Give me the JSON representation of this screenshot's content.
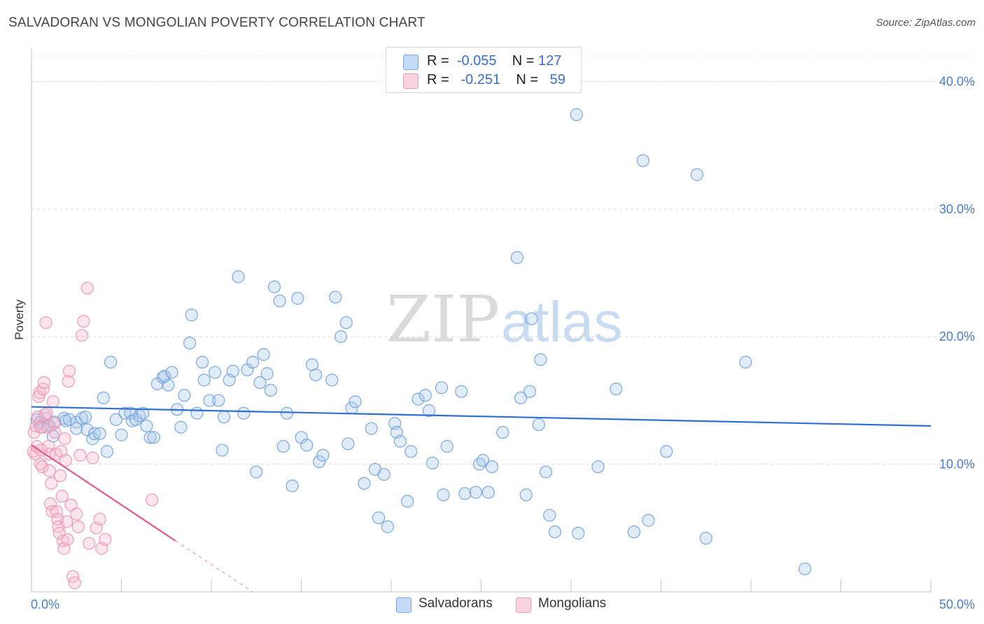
{
  "header": {
    "title": "SALVADORAN VS MONGOLIAN POVERTY CORRELATION CHART",
    "source": "Source: ZipAtlas.com"
  },
  "watermark": {
    "zip": "ZIP",
    "atlas": "atlas"
  },
  "legend": {
    "rows": [
      {
        "r_label": "R =",
        "r_value": "-0.055",
        "n_label": "N =",
        "n_value": "127",
        "color": "#a9c8ef"
      },
      {
        "r_label": "R =",
        "r_value": "-0.251",
        "n_label": "N =",
        "n_value": "59",
        "color": "#f5b8cb"
      }
    ]
  },
  "bottom_legend": {
    "salvadorans": "Salvadorans",
    "mongolians": "Mongolians"
  },
  "chart_data": {
    "type": "scatter",
    "ylabel": "Poverty",
    "xlim": [
      0,
      50
    ],
    "ylim": [
      0,
      42
    ],
    "x_tick_labels": [
      "0.0%",
      "50.0%"
    ],
    "y_ticks": [
      10,
      20,
      30,
      40
    ],
    "y_tick_labels": [
      "10.0%",
      "20.0%",
      "30.0%",
      "40.0%"
    ],
    "grid": "horizontal dashed",
    "legend_position": "top-center",
    "colors": {
      "salvadorans": "#7ba7e0",
      "mongolians": "#f09ab5",
      "trend_blue": "#2f6fd0",
      "trend_pink": "#e0588c",
      "tick_text": "#4a7cc7"
    },
    "series": [
      {
        "name": "Salvadorans",
        "trend": {
          "x": [
            0,
            50
          ],
          "y": [
            14.5,
            13.0
          ]
        },
        "points": [
          [
            0.3,
            13.5
          ],
          [
            0.5,
            13.3
          ],
          [
            0.6,
            12.9
          ],
          [
            0.8,
            13.6
          ],
          [
            1.0,
            13.0
          ],
          [
            1.2,
            12.2
          ],
          [
            1.3,
            13.3
          ],
          [
            1.8,
            13.6
          ],
          [
            1.9,
            13.4
          ],
          [
            2.1,
            13.5
          ],
          [
            2.5,
            13.3
          ],
          [
            2.5,
            12.8
          ],
          [
            2.8,
            13.6
          ],
          [
            3.0,
            13.7
          ],
          [
            3.1,
            12.7
          ],
          [
            3.4,
            12.0
          ],
          [
            3.5,
            12.4
          ],
          [
            3.8,
            12.4
          ],
          [
            4.0,
            15.2
          ],
          [
            4.2,
            11.0
          ],
          [
            4.4,
            18.0
          ],
          [
            4.7,
            13.5
          ],
          [
            5.0,
            12.3
          ],
          [
            5.2,
            14.0
          ],
          [
            5.5,
            14.0
          ],
          [
            5.6,
            13.4
          ],
          [
            5.8,
            13.5
          ],
          [
            6.0,
            13.8
          ],
          [
            6.2,
            14.0
          ],
          [
            6.4,
            13.0
          ],
          [
            6.6,
            12.1
          ],
          [
            6.8,
            12.1
          ],
          [
            7.0,
            16.3
          ],
          [
            7.3,
            16.8
          ],
          [
            7.4,
            16.9
          ],
          [
            7.6,
            16.2
          ],
          [
            7.8,
            17.2
          ],
          [
            8.1,
            14.3
          ],
          [
            8.3,
            12.9
          ],
          [
            8.5,
            15.4
          ],
          [
            8.8,
            19.5
          ],
          [
            8.9,
            21.7
          ],
          [
            9.2,
            14.0
          ],
          [
            9.5,
            18.0
          ],
          [
            9.6,
            16.6
          ],
          [
            9.9,
            15.0
          ],
          [
            10.2,
            17.2
          ],
          [
            10.4,
            15.0
          ],
          [
            10.6,
            11.1
          ],
          [
            10.7,
            13.7
          ],
          [
            11.0,
            16.6
          ],
          [
            11.2,
            17.3
          ],
          [
            11.5,
            24.7
          ],
          [
            11.8,
            14.0
          ],
          [
            12.0,
            17.4
          ],
          [
            12.3,
            18.0
          ],
          [
            12.5,
            9.4
          ],
          [
            12.7,
            16.4
          ],
          [
            12.9,
            18.6
          ],
          [
            13.1,
            17.1
          ],
          [
            13.3,
            15.8
          ],
          [
            13.5,
            23.9
          ],
          [
            13.8,
            22.8
          ],
          [
            14.0,
            11.4
          ],
          [
            14.2,
            14.0
          ],
          [
            14.5,
            8.3
          ],
          [
            14.8,
            23.0
          ],
          [
            15.0,
            12.1
          ],
          [
            15.3,
            11.5
          ],
          [
            15.6,
            17.8
          ],
          [
            15.8,
            17.0
          ],
          [
            16.0,
            10.2
          ],
          [
            16.2,
            10.7
          ],
          [
            16.7,
            16.6
          ],
          [
            16.9,
            23.1
          ],
          [
            17.2,
            20.0
          ],
          [
            17.5,
            21.1
          ],
          [
            17.6,
            11.6
          ],
          [
            17.8,
            14.4
          ],
          [
            18.0,
            14.9
          ],
          [
            18.5,
            8.5
          ],
          [
            18.9,
            12.8
          ],
          [
            19.1,
            9.6
          ],
          [
            19.3,
            5.8
          ],
          [
            19.6,
            9.2
          ],
          [
            19.8,
            5.1
          ],
          [
            20.2,
            13.2
          ],
          [
            20.3,
            12.5
          ],
          [
            20.5,
            11.8
          ],
          [
            20.9,
            7.1
          ],
          [
            21.1,
            11.0
          ],
          [
            21.5,
            15.1
          ],
          [
            21.9,
            15.4
          ],
          [
            22.1,
            14.2
          ],
          [
            22.3,
            10.1
          ],
          [
            22.8,
            16.0
          ],
          [
            22.9,
            7.6
          ],
          [
            23.1,
            11.4
          ],
          [
            23.9,
            15.7
          ],
          [
            24.1,
            7.7
          ],
          [
            24.7,
            7.8
          ],
          [
            24.9,
            10.0
          ],
          [
            25.1,
            10.3
          ],
          [
            25.4,
            7.8
          ],
          [
            25.6,
            9.8
          ],
          [
            26.2,
            12.5
          ],
          [
            27.0,
            26.2
          ],
          [
            27.2,
            15.2
          ],
          [
            27.5,
            7.6
          ],
          [
            27.7,
            15.7
          ],
          [
            27.8,
            21.4
          ],
          [
            28.2,
            13.1
          ],
          [
            28.3,
            18.2
          ],
          [
            28.6,
            9.4
          ],
          [
            28.8,
            6.0
          ],
          [
            29.1,
            4.7
          ],
          [
            30.3,
            37.4
          ],
          [
            30.4,
            4.6
          ],
          [
            31.5,
            9.8
          ],
          [
            32.5,
            15.9
          ],
          [
            33.5,
            4.7
          ],
          [
            34.0,
            33.8
          ],
          [
            34.3,
            5.6
          ],
          [
            35.3,
            11.0
          ],
          [
            37.0,
            32.7
          ],
          [
            37.5,
            4.2
          ],
          [
            39.7,
            18.0
          ],
          [
            43.0,
            1.8
          ]
        ]
      },
      {
        "name": "Mongolians",
        "trend": {
          "x": [
            0,
            8.0
          ],
          "y": [
            11.5,
            4.0
          ]
        },
        "trend_dashed": {
          "x": [
            8.0,
            12.3
          ],
          "y": [
            4.0,
            0
          ]
        },
        "points": [
          [
            0.1,
            11.0
          ],
          [
            0.15,
            12.5
          ],
          [
            0.2,
            10.8
          ],
          [
            0.25,
            13.0
          ],
          [
            0.3,
            11.4
          ],
          [
            0.35,
            13.7
          ],
          [
            0.4,
            15.3
          ],
          [
            0.45,
            15.6
          ],
          [
            0.5,
            12.9
          ],
          [
            0.5,
            10.0
          ],
          [
            0.55,
            11.1
          ],
          [
            0.6,
            9.8
          ],
          [
            0.65,
            15.9
          ],
          [
            0.7,
            16.4
          ],
          [
            0.75,
            13.9
          ],
          [
            0.8,
            21.1
          ],
          [
            0.85,
            14.0
          ],
          [
            0.9,
            12.9
          ],
          [
            0.95,
            11.4
          ],
          [
            1.0,
            10.8
          ],
          [
            1.0,
            9.5
          ],
          [
            1.05,
            6.9
          ],
          [
            1.1,
            8.5
          ],
          [
            1.15,
            6.3
          ],
          [
            1.2,
            14.9
          ],
          [
            1.25,
            13.2
          ],
          [
            1.3,
            12.5
          ],
          [
            1.35,
            10.8
          ],
          [
            1.4,
            6.3
          ],
          [
            1.45,
            5.7
          ],
          [
            1.5,
            5.1
          ],
          [
            1.55,
            4.6
          ],
          [
            1.6,
            9.1
          ],
          [
            1.65,
            11.0
          ],
          [
            1.7,
            7.5
          ],
          [
            1.75,
            4.0
          ],
          [
            1.8,
            3.4
          ],
          [
            1.85,
            12.0
          ],
          [
            1.9,
            10.3
          ],
          [
            1.95,
            5.5
          ],
          [
            2.0,
            4.1
          ],
          [
            2.05,
            16.5
          ],
          [
            2.1,
            17.3
          ],
          [
            2.2,
            6.8
          ],
          [
            2.3,
            1.2
          ],
          [
            2.4,
            0.7
          ],
          [
            2.5,
            6.1
          ],
          [
            2.6,
            5.1
          ],
          [
            2.7,
            10.7
          ],
          [
            2.8,
            20.1
          ],
          [
            2.9,
            21.2
          ],
          [
            3.1,
            23.8
          ],
          [
            3.2,
            3.8
          ],
          [
            3.4,
            10.5
          ],
          [
            3.6,
            5.0
          ],
          [
            3.8,
            5.7
          ],
          [
            3.9,
            3.4
          ],
          [
            4.1,
            4.1
          ],
          [
            6.7,
            7.2
          ]
        ]
      }
    ]
  }
}
